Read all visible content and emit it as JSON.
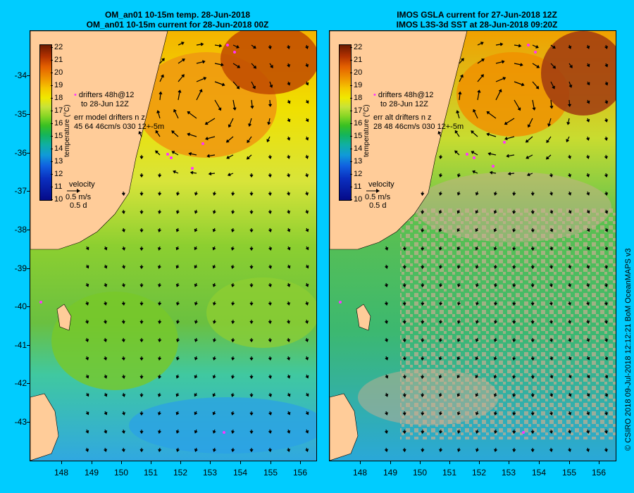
{
  "left_panel": {
    "title_line1": "OM_an01 10-15m temp. 28-Jun-2018",
    "title_line2": "OM_an01 10-15m current for 28-Jun-2018 00Z",
    "legend_line1": "drifters 48h@12",
    "legend_line2": "to 28-Jun 12Z",
    "legend_line3": "err model drifters n z",
    "legend_line4": "45 64 46cm/s 030 12+-5m"
  },
  "right_panel": {
    "title_line1": "IMOS GSLA current for 27-Jun-2018 12Z",
    "title_line2": "IMOS L3S-3d SST at 28-Jun-2018 09:20Z",
    "legend_line1": "drifters 48h@12",
    "legend_line2": "to 28-Jun 12Z",
    "legend_line3": "err alt drifters n z",
    "legend_line4": "28 48 46cm/s 030 12+-5m"
  },
  "colorbar": {
    "title": "temperature (°C)",
    "ticks": [
      "22",
      "21",
      "20",
      "19",
      "18",
      "17",
      "16",
      "15",
      "14",
      "13",
      "12",
      "11",
      "10"
    ]
  },
  "velocity_key": {
    "label": "velocity",
    "speed": "0.5 m/s",
    "duration": "0.5 d"
  },
  "axes": {
    "lat_ticks": [
      "-34",
      "-35",
      "-36",
      "-37",
      "-38",
      "-39",
      "-40",
      "-41",
      "-42",
      "-43"
    ],
    "lon_ticks": [
      "148",
      "149",
      "150",
      "151",
      "152",
      "153",
      "154",
      "155",
      "156"
    ]
  },
  "credit": "© CSIRO 2018  09-Jul-2018 12:12:21 BoM OceanMAPS v3",
  "colors": {
    "background": "#00ccff",
    "land": "#ffcc99",
    "missing_data": "#c8ad90",
    "drifter": "#ff33ff"
  }
}
